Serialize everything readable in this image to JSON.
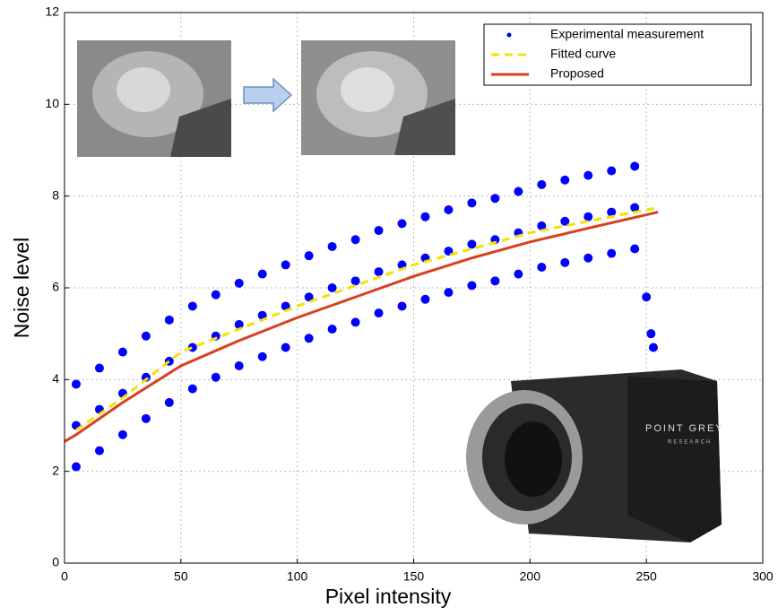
{
  "chart_data": {
    "type": "scatter",
    "xlabel": "Pixel intensity",
    "ylabel": "Noise level",
    "xlim": [
      0,
      300
    ],
    "ylim": [
      0,
      12
    ],
    "xticks": [
      0,
      50,
      100,
      150,
      200,
      250,
      300
    ],
    "yticks": [
      0,
      2,
      4,
      6,
      8,
      10,
      12
    ],
    "grid": true,
    "legend": "upper right",
    "annotations": [
      "POINT GREY",
      "RESEARCH"
    ],
    "series": [
      {
        "name": "Experimental measurement",
        "color": "#0000ff",
        "kind": "points",
        "x": [
          5,
          5,
          5,
          15,
          15,
          15,
          25,
          25,
          25,
          35,
          35,
          35,
          45,
          45,
          45,
          55,
          55,
          55,
          65,
          65,
          65,
          75,
          75,
          75,
          85,
          85,
          85,
          95,
          95,
          95,
          105,
          105,
          105,
          115,
          115,
          115,
          125,
          125,
          125,
          135,
          135,
          135,
          145,
          145,
          145,
          155,
          155,
          155,
          165,
          165,
          165,
          175,
          175,
          175,
          185,
          185,
          185,
          195,
          195,
          195,
          205,
          205,
          205,
          215,
          215,
          215,
          225,
          225,
          225,
          235,
          235,
          235,
          245,
          245,
          245,
          250,
          252,
          253
        ],
        "values": [
          2.1,
          3.0,
          3.9,
          2.45,
          3.35,
          4.25,
          2.8,
          3.7,
          4.6,
          3.15,
          4.05,
          4.95,
          3.5,
          4.4,
          5.3,
          3.8,
          4.7,
          5.6,
          4.05,
          4.95,
          5.85,
          4.3,
          5.2,
          6.1,
          4.5,
          5.4,
          6.3,
          4.7,
          5.6,
          6.5,
          4.9,
          5.8,
          6.7,
          5.1,
          6.0,
          6.9,
          5.25,
          6.15,
          7.05,
          5.45,
          6.35,
          7.25,
          5.6,
          6.5,
          7.4,
          5.75,
          6.65,
          7.55,
          5.9,
          6.8,
          7.7,
          6.05,
          6.95,
          7.85,
          6.15,
          7.05,
          7.95,
          6.3,
          7.2,
          8.1,
          6.45,
          7.35,
          8.25,
          6.55,
          7.45,
          8.35,
          6.65,
          7.55,
          8.45,
          6.75,
          7.65,
          8.55,
          6.85,
          7.75,
          8.65,
          5.8,
          5.0,
          4.7
        ]
      },
      {
        "name": "Fitted curve",
        "color": "#f5e000",
        "kind": "dashed",
        "x": [
          5,
          25,
          50,
          75,
          100,
          125,
          150,
          175,
          200,
          225,
          255
        ],
        "values": [
          2.9,
          3.6,
          4.6,
          5.1,
          5.6,
          6.05,
          6.5,
          6.85,
          7.2,
          7.45,
          7.75
        ]
      },
      {
        "name": "Proposed",
        "color": "#d9401f",
        "kind": "solid",
        "x": [
          0,
          5,
          25,
          50,
          75,
          100,
          125,
          150,
          175,
          200,
          225,
          255
        ],
        "values": [
          2.65,
          2.8,
          3.5,
          4.3,
          4.85,
          5.35,
          5.8,
          6.25,
          6.65,
          7.0,
          7.3,
          7.65
        ]
      }
    ]
  }
}
